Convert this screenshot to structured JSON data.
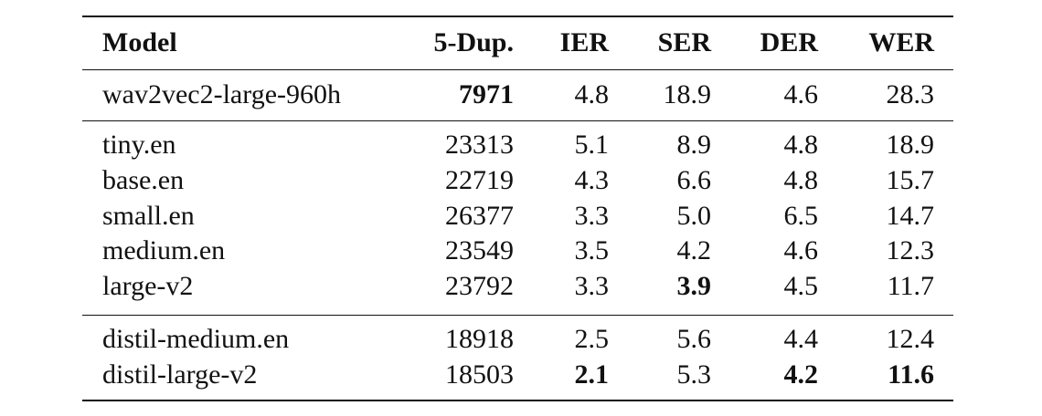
{
  "table": {
    "header": [
      "Model",
      "5-Dup.",
      "IER",
      "SER",
      "DER",
      "WER"
    ],
    "groups": [
      {
        "rows": [
          [
            "wav2vec2-large-960h",
            "7971",
            "4.8",
            "18.9",
            "4.6",
            "28.3"
          ]
        ],
        "bold": [
          [
            0,
            1
          ]
        ]
      },
      {
        "rows": [
          [
            "tiny.en",
            "23313",
            "5.1",
            "8.9",
            "4.8",
            "18.9"
          ],
          [
            "base.en",
            "22719",
            "4.3",
            "6.6",
            "4.8",
            "15.7"
          ],
          [
            "small.en",
            "26377",
            "3.3",
            "5.0",
            "6.5",
            "14.7"
          ],
          [
            "medium.en",
            "23549",
            "3.5",
            "4.2",
            "4.6",
            "12.3"
          ],
          [
            "large-v2",
            "23792",
            "3.3",
            "3.9",
            "4.5",
            "11.7"
          ]
        ],
        "bold": [
          [
            4,
            3
          ]
        ]
      },
      {
        "rows": [
          [
            "distil-medium.en",
            "18918",
            "2.5",
            "5.6",
            "4.4",
            "12.4"
          ],
          [
            "distil-large-v2",
            "18503",
            "2.1",
            "5.3",
            "4.2",
            "11.6"
          ]
        ],
        "bold": [
          [
            1,
            2
          ],
          [
            1,
            4
          ],
          [
            1,
            5
          ]
        ]
      }
    ]
  }
}
